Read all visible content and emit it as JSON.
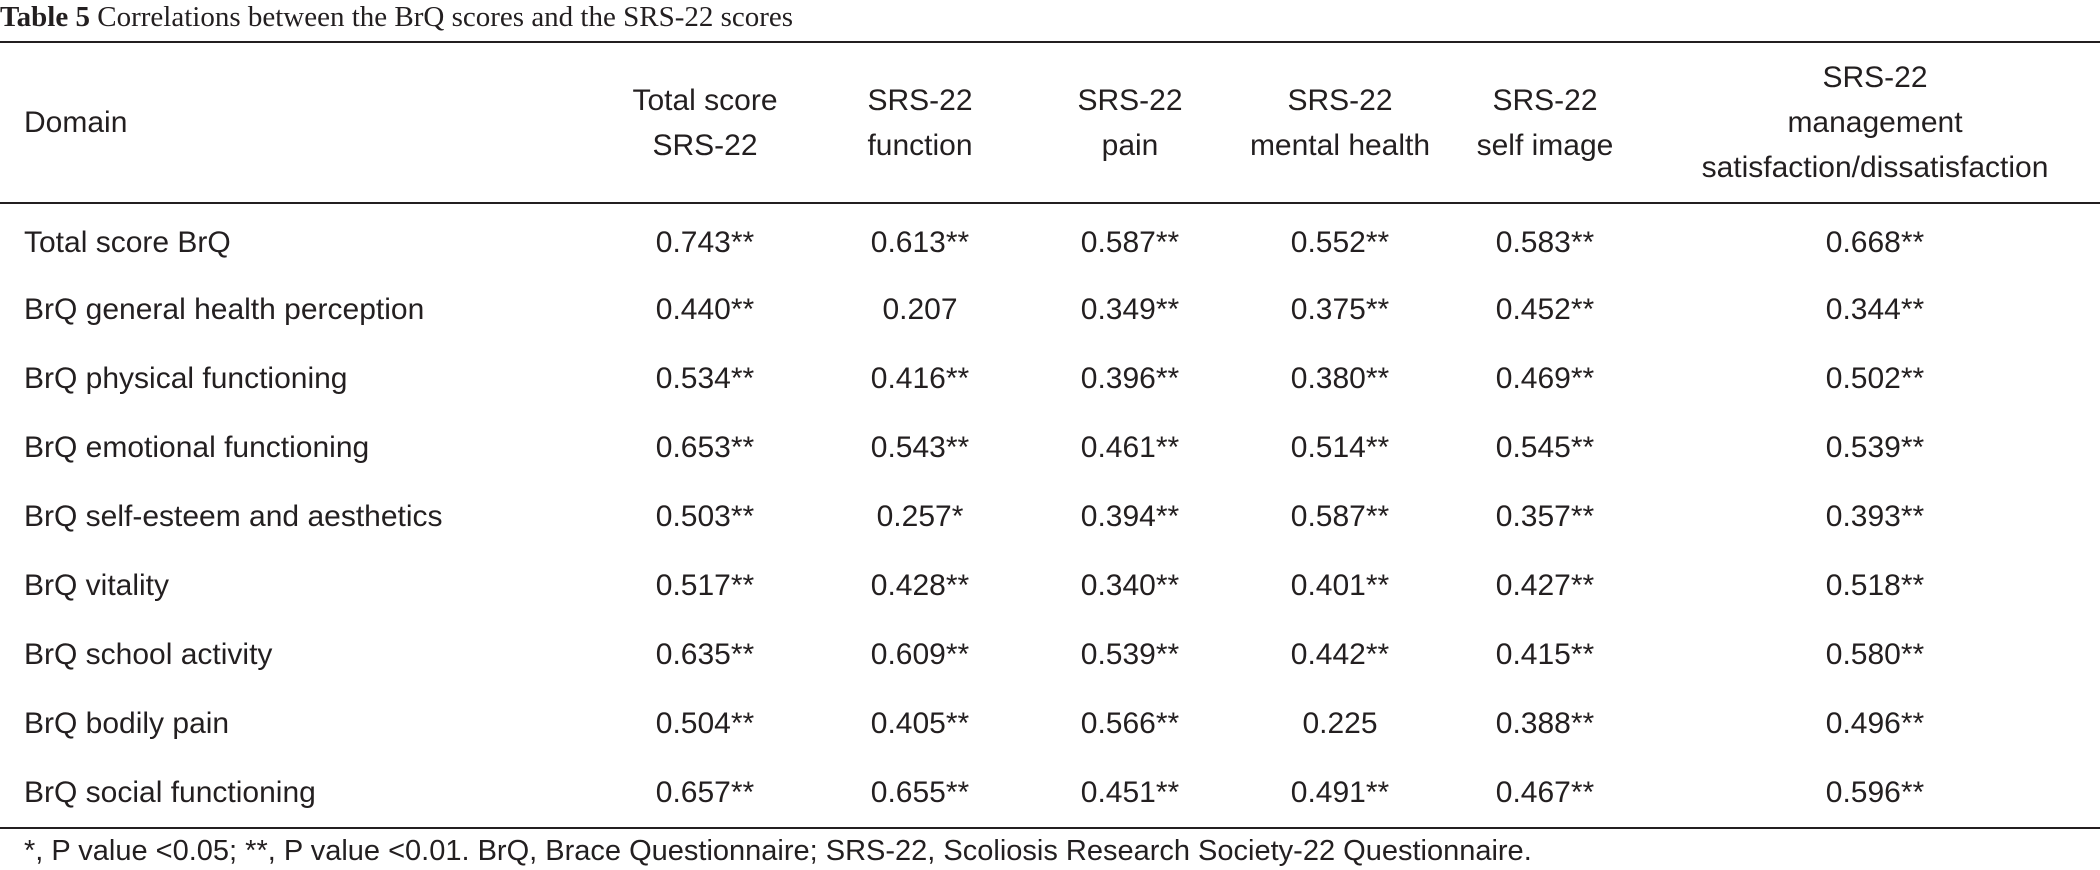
{
  "caption": {
    "label": "Table 5",
    "text": "Correlations between the BrQ scores and the SRS-22 scores"
  },
  "table": {
    "header": [
      [
        "Domain"
      ],
      [
        "Total score",
        "SRS-22"
      ],
      [
        "SRS-22",
        "function"
      ],
      [
        "SRS-22",
        "pain"
      ],
      [
        "SRS-22",
        "mental health"
      ],
      [
        "SRS-22",
        "self image"
      ],
      [
        "SRS-22",
        "management",
        "satisfaction/dissatisfaction"
      ]
    ],
    "rows": [
      [
        "Total score BrQ",
        "0.743**",
        "0.613**",
        "0.587**",
        "0.552**",
        "0.583**",
        "0.668**"
      ],
      [
        "BrQ general health perception",
        "0.440**",
        "0.207",
        "0.349**",
        "0.375**",
        "0.452**",
        "0.344**"
      ],
      [
        "BrQ physical functioning",
        "0.534**",
        "0.416**",
        "0.396**",
        "0.380**",
        "0.469**",
        "0.502**"
      ],
      [
        "BrQ emotional functioning",
        "0.653**",
        "0.543**",
        "0.461**",
        "0.514**",
        "0.545**",
        "0.539**"
      ],
      [
        "BrQ self-esteem and aesthetics",
        "0.503**",
        "0.257*",
        "0.394**",
        "0.587**",
        "0.357**",
        "0.393**"
      ],
      [
        "BrQ vitality",
        "0.517**",
        "0.428**",
        "0.340**",
        "0.401**",
        "0.427**",
        "0.518**"
      ],
      [
        "BrQ school activity",
        "0.635**",
        "0.609**",
        "0.539**",
        "0.442**",
        "0.415**",
        "0.580**"
      ],
      [
        "BrQ bodily pain",
        "0.504**",
        "0.405**",
        "0.566**",
        "0.225",
        "0.388**",
        "0.496**"
      ],
      [
        "BrQ social functioning",
        "0.657**",
        "0.655**",
        "0.451**",
        "0.491**",
        "0.467**",
        "0.596**"
      ]
    ]
  },
  "footnote": "*, P value <0.05; **, P value <0.01. BrQ, Brace Questionnaire; SRS-22, Scoliosis Research Society-22 Questionnaire."
}
